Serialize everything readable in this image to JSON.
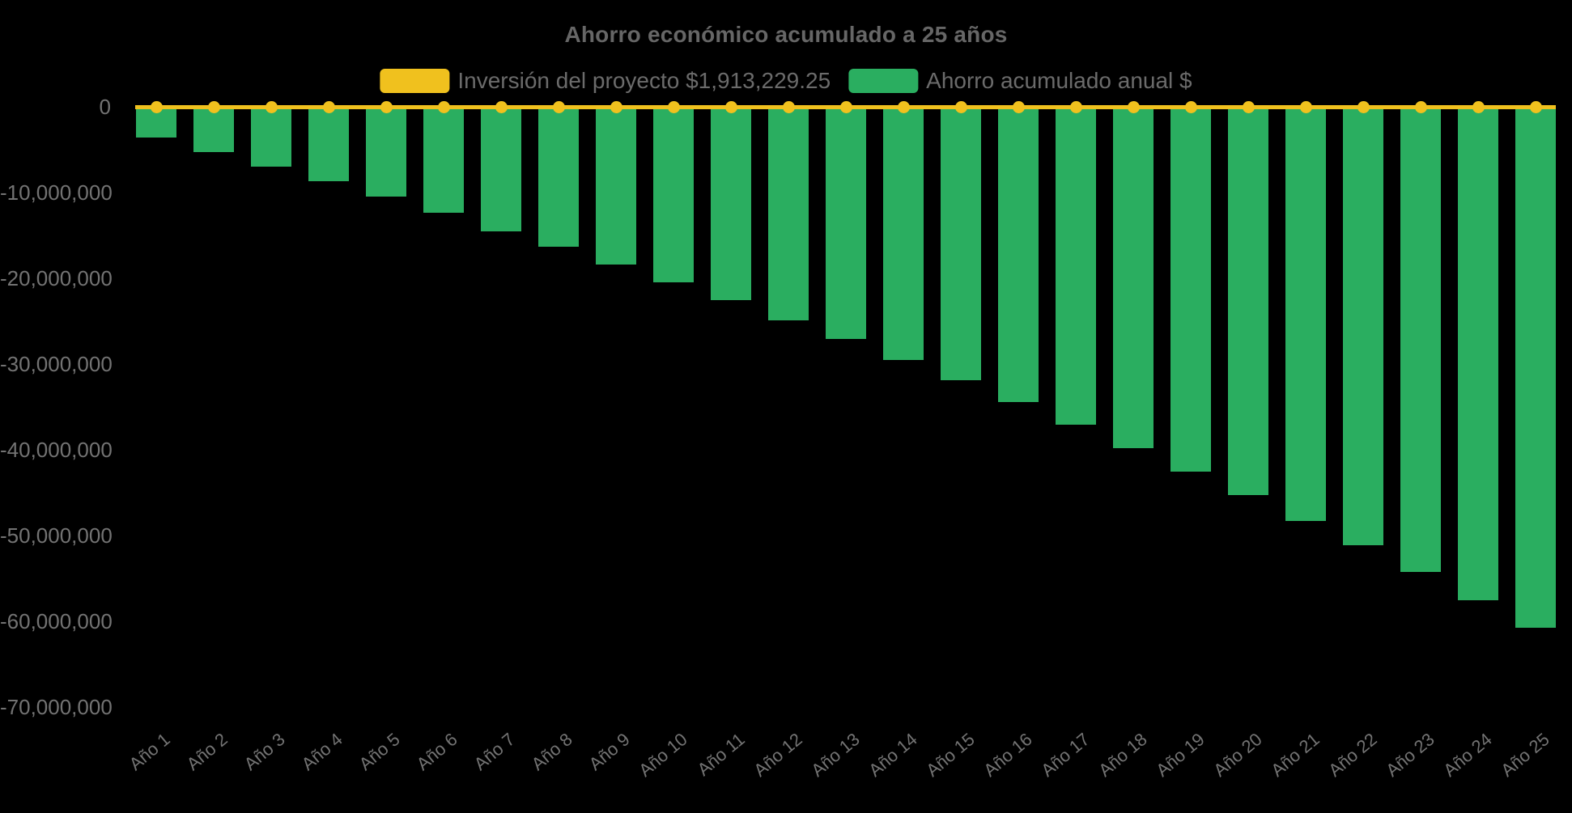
{
  "chart_data": {
    "type": "bar",
    "title": "Ahorro económico acumulado a 25 años",
    "background_color": "#000000",
    "legend_position": "top",
    "grid": false,
    "xlabel": "",
    "ylabel": "",
    "ylim": [
      -70000000,
      0
    ],
    "ytick_labels": [
      "0",
      "-10,000,000",
      "-20,000,000",
      "-30,000,000",
      "-40,000,000",
      "-50,000,000",
      "-60,000,000",
      "-70,000,000"
    ],
    "ytick_values": [
      0,
      -10000000,
      -20000000,
      -30000000,
      -40000000,
      -50000000,
      -60000000,
      -70000000
    ],
    "categories": [
      "Año 1",
      "Año 2",
      "Año 3",
      "Año 4",
      "Año 5",
      "Año 6",
      "Año 7",
      "Año 8",
      "Año 9",
      "Año 10",
      "Año 11",
      "Año 12",
      "Año 13",
      "Año 14",
      "Año 15",
      "Año 16",
      "Año 17",
      "Año 18",
      "Año 19",
      "Año 20",
      "Año 21",
      "Año 22",
      "Año 23",
      "Año 24",
      "Año 25"
    ],
    "series": [
      {
        "name": "Inversión del proyecto $1,913,229.25",
        "type": "line",
        "color": "#f0c11e",
        "marker": "circle-dot",
        "plotted_at": 0,
        "labeled_amount": 1913229.25
      },
      {
        "name": "Ahorro acumulado anual $",
        "type": "bar",
        "color": "#2aae60",
        "values": [
          -3600000,
          -5250000,
          -7000000,
          -8700000,
          -10450000,
          -12400000,
          -14500000,
          -16350000,
          -18400000,
          -20500000,
          -22550000,
          -24900000,
          -27100000,
          -29550000,
          -31900000,
          -34500000,
          -37100000,
          -39850000,
          -42550000,
          -45350000,
          -48300000,
          -51150000,
          -54300000,
          -57550000,
          -60800000
        ]
      }
    ]
  }
}
